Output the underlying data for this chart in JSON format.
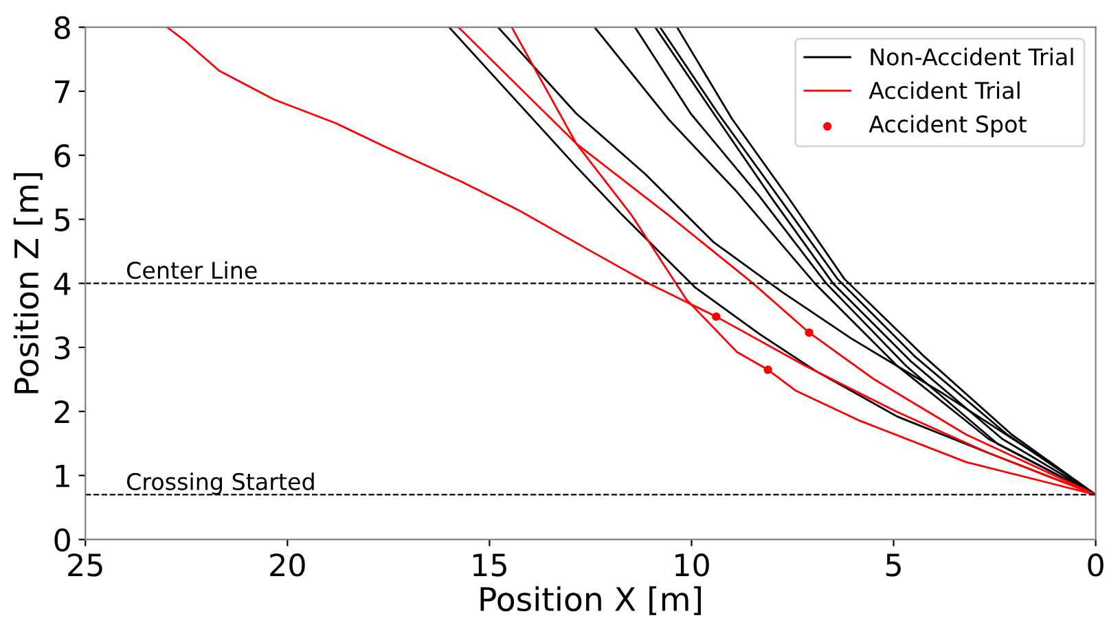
{
  "chart_data": {
    "type": "line",
    "xlabel": "Position X [m]",
    "ylabel": "Position Z [m]",
    "xlim": [
      25,
      0
    ],
    "ylim": [
      0,
      8
    ],
    "xticks": [
      25,
      20,
      15,
      10,
      5,
      0
    ],
    "yticks": [
      0,
      1,
      2,
      3,
      4,
      5,
      6,
      7,
      8
    ],
    "grid": false,
    "legend": "top right",
    "marker": "none",
    "line_style": "solid",
    "series": [
      {
        "name": "Non-Accident Trial",
        "color": "#000000",
        "x": [
          16.0,
          12.85,
          11.72,
          9.9,
          8.32,
          6.95,
          4.91,
          2.65,
          0
        ],
        "values": [
          8.0,
          5.82,
          5.07,
          3.93,
          3.21,
          2.64,
          1.92,
          1.35,
          0.7
        ]
      },
      {
        "color": "#000000",
        "x": [
          14.79,
          12.85,
          11.15,
          9.45,
          7.75,
          6.05,
          3.78,
          1.51,
          0
        ],
        "values": [
          8.0,
          6.65,
          5.71,
          4.64,
          3.86,
          3.14,
          2.28,
          1.35,
          0.7
        ]
      },
      {
        "color": "#000000",
        "x": [
          12.4,
          10.58,
          8.88,
          6.95,
          4.91,
          2.65,
          0
        ],
        "values": [
          8.0,
          6.57,
          5.43,
          4.0,
          2.71,
          1.57,
          0.7
        ]
      },
      {
        "color": "#000000",
        "x": [
          11.4,
          10.02,
          8.32,
          6.67,
          4.69,
          2.42,
          0
        ],
        "values": [
          8.0,
          6.65,
          5.36,
          4.0,
          2.71,
          1.49,
          0.7
        ]
      },
      {
        "color": "#000000",
        "x": [
          10.9,
          9.45,
          7.97,
          6.5,
          4.57,
          2.31,
          0
        ],
        "values": [
          8.0,
          6.65,
          5.29,
          4.0,
          2.78,
          1.57,
          0.7
        ]
      },
      {
        "color": "#000000",
        "x": [
          10.78,
          9.34,
          7.86,
          6.39,
          4.46,
          2.19,
          0
        ],
        "values": [
          8.0,
          6.65,
          5.36,
          4.07,
          2.85,
          1.64,
          0.7
        ]
      },
      {
        "color": "#000000",
        "x": [
          10.36,
          9.0,
          7.63,
          6.22,
          4.23,
          2.08,
          0
        ],
        "values": [
          8.0,
          6.57,
          5.36,
          4.07,
          2.85,
          1.64,
          0.7
        ]
      },
      {
        "name": "Accident Trial",
        "color": "#ff0000",
        "x": [
          22.98,
          22.54,
          21.69,
          20.33,
          18.8,
          17.61,
          15.67,
          14.3,
          12.51,
          11.04,
          10.13,
          9.39,
          7.18,
          4.91,
          2.65,
          0
        ],
        "values": [
          8.0,
          7.79,
          7.32,
          6.87,
          6.5,
          6.14,
          5.58,
          5.15,
          4.51,
          3.99,
          3.71,
          3.48,
          2.71,
          1.99,
          1.35,
          0.7
        ]
      },
      {
        "color": "#ff0000",
        "x": [
          15.77,
          12.85,
          10.58,
          8.48,
          7.09,
          5.48,
          3.21,
          0
        ],
        "values": [
          8.0,
          6.18,
          5.07,
          4.0,
          3.23,
          2.5,
          1.64,
          0.7
        ]
      },
      {
        "color": "#ff0000",
        "x": [
          14.45,
          12.85,
          11.49,
          10.13,
          8.88,
          8.11,
          7.41,
          5.82,
          3.21,
          0
        ],
        "values": [
          8.0,
          6.18,
          5.07,
          3.75,
          2.93,
          2.65,
          2.32,
          1.85,
          1.21,
          0.7
        ]
      },
      {
        "name": "Accident Spot",
        "type": "scatter",
        "marker": "circle",
        "color": "#ff0000",
        "x": [
          9.39,
          7.09,
          8.11
        ],
        "values": [
          3.48,
          3.23,
          2.65
        ]
      }
    ],
    "ref_lines": [
      {
        "axis": "y",
        "value": 4,
        "label": "Center Line",
        "color": "#000000",
        "line_style": "dashed"
      },
      {
        "axis": "y",
        "value": 0.7,
        "label": "Crossing Started",
        "color": "#000000",
        "line_style": "dashed"
      }
    ]
  }
}
